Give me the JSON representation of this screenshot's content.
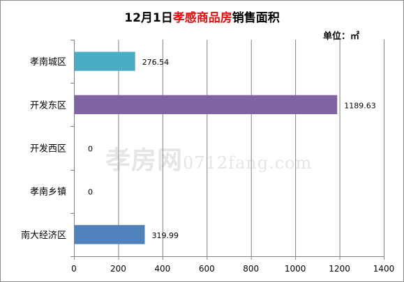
{
  "chart_data": {
    "type": "bar",
    "orientation": "horizontal",
    "title": "12月1日孝感商品房销售面积",
    "title_parts": {
      "prefix": "12月1日",
      "highlight": "孝感商品房",
      "suffix": "销售面积"
    },
    "unit_label": "单位：㎡",
    "categories": [
      "孝南城区",
      "开发东区",
      "开发西区",
      "孝南乡镇",
      "南大经济区"
    ],
    "values": [
      276.54,
      1189.63,
      0,
      0,
      319.99
    ],
    "value_labels": [
      "276.54",
      "1189.63",
      "0",
      "0",
      "319.99"
    ],
    "bar_colors": [
      "#4bacc6",
      "#8064a2",
      "#4f81bd",
      "#4f81bd",
      "#4f81bd"
    ],
    "xlim": [
      0,
      1400
    ],
    "xticks": [
      0,
      200,
      400,
      600,
      800,
      1000,
      1200,
      1400
    ],
    "xtick_labels": [
      "0",
      "200",
      "400",
      "600",
      "800",
      "1000",
      "1200",
      "1400"
    ],
    "grid": true,
    "colors": {
      "highlight_title": "#e01010",
      "grid": "#808080",
      "axis": "#808080"
    }
  },
  "watermark": {
    "brand": "孝房网",
    "domain": "0712fang.com"
  }
}
